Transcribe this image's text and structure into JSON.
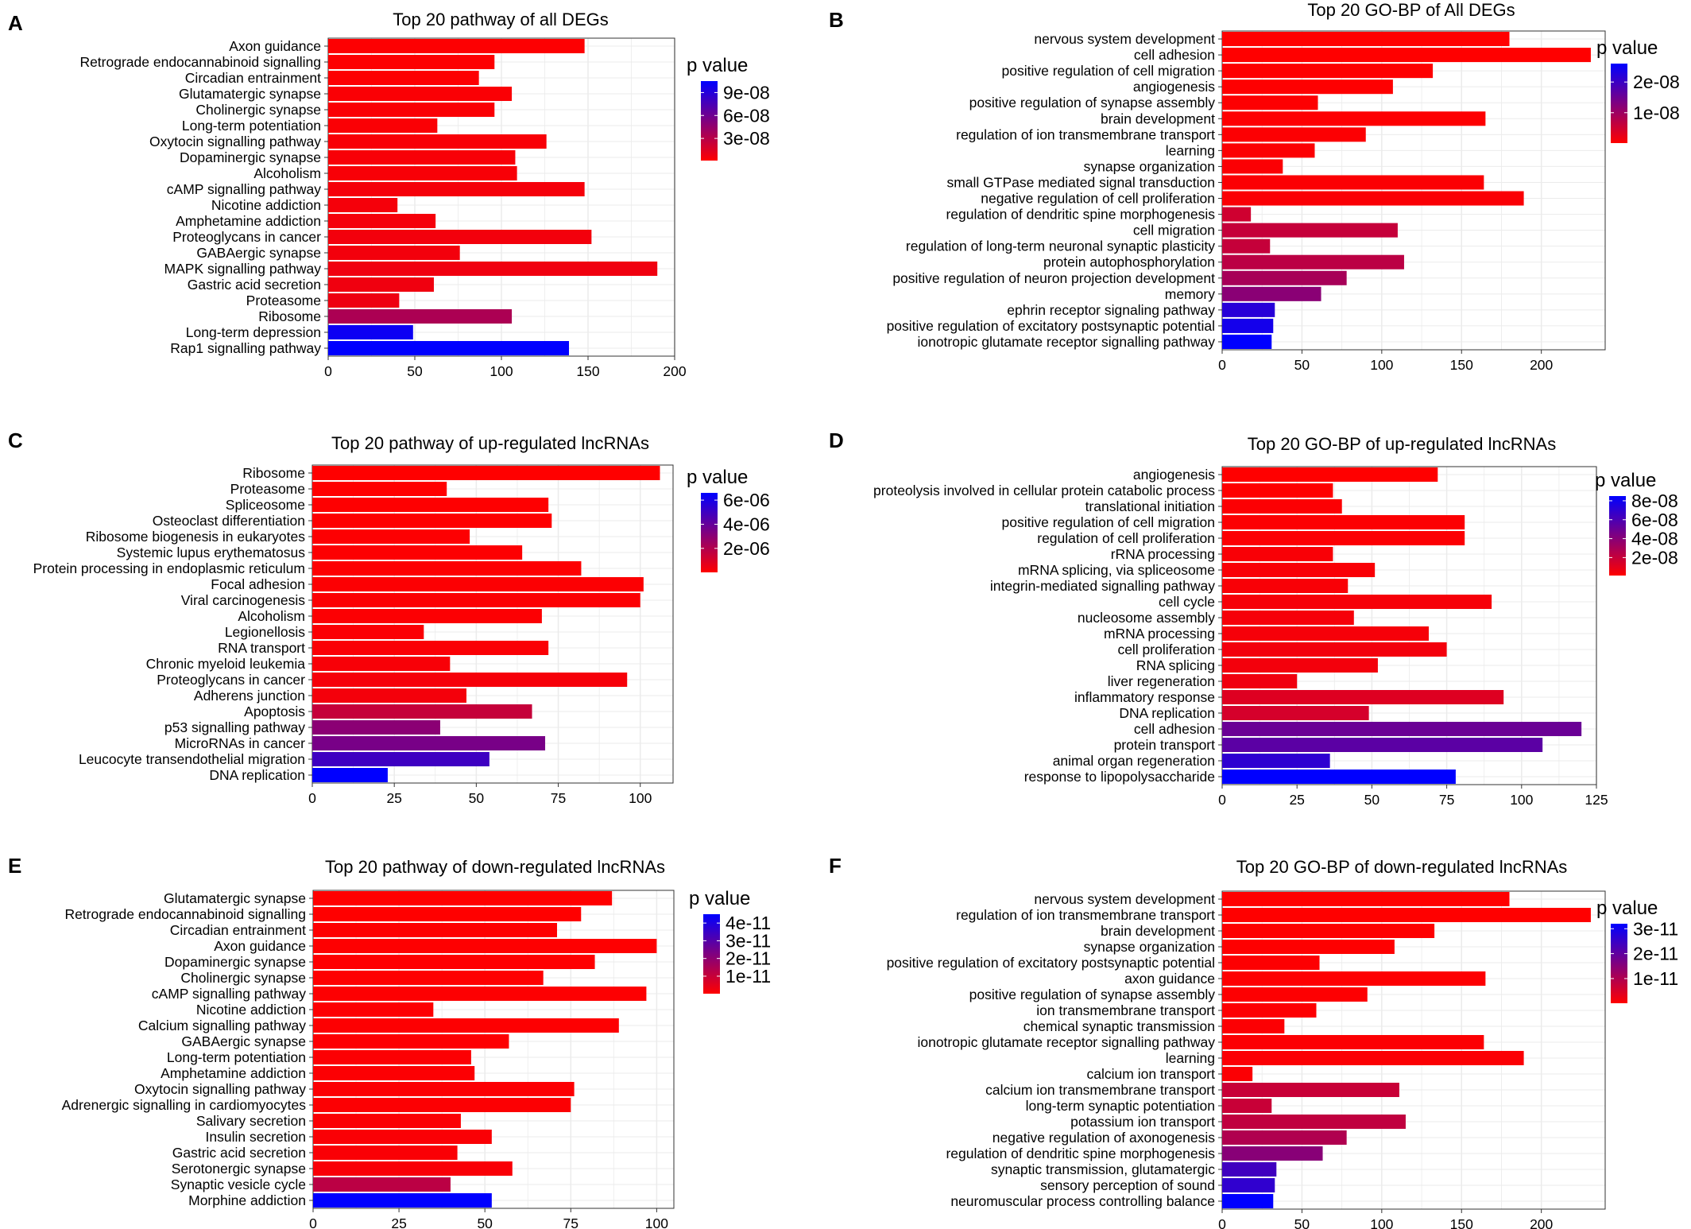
{
  "chart_data": [
    {
      "panel": "A",
      "type": "bar",
      "orientation": "horizontal",
      "title": "Top 20 pathway of all DEGs",
      "xlabel": "",
      "ylabel": "",
      "xlim": [
        0,
        200
      ],
      "xticks": [
        0,
        50,
        100,
        150,
        200
      ],
      "grid": true,
      "legend": {
        "title": "p value",
        "position": "right",
        "ticks": [
          "9e-08",
          "6e-08",
          "3e-08"
        ],
        "tick_values": [
          9e-08,
          6e-08,
          3e-08
        ],
        "range": [
          1e-09,
          1.05e-07
        ]
      },
      "categories": [
        "Axon guidance",
        "Retrograde endocannabinoid signalling",
        "Circadian entrainment",
        "Glutamatergic synapse",
        "Cholinergic synapse",
        "Long-term potentiation",
        "Oxytocin signalling pathway",
        "Dopaminergic synapse",
        "Alcoholism",
        "cAMP signalling pathway",
        "Nicotine addiction",
        "Amphetamine addiction",
        "Proteoglycans in cancer",
        "GABAergic synapse",
        "MAPK signalling pathway",
        "Gastric acid secretion",
        "Proteasome",
        "Ribosome",
        "Long-term depression",
        "Rap1 signalling pathway"
      ],
      "values": [
        148,
        96,
        87,
        106,
        96,
        63,
        126,
        108,
        109,
        148,
        40,
        62,
        152,
        76,
        190,
        61,
        41,
        106,
        49,
        139
      ],
      "p_values": [
        2e-09,
        2e-09,
        2e-09,
        3e-09,
        3e-09,
        3e-09,
        4e-09,
        4e-09,
        4e-09,
        5e-09,
        5e-09,
        5e-09,
        6e-09,
        6e-09,
        7e-09,
        7e-09,
        8e-09,
        3.5e-08,
        1e-07,
        1.05e-07
      ]
    },
    {
      "panel": "B",
      "type": "bar",
      "orientation": "horizontal",
      "title": "Top 20 GO-BP of All DEGs",
      "xlabel": "",
      "ylabel": "",
      "xlim": [
        0,
        240
      ],
      "xticks": [
        0,
        50,
        100,
        150,
        200
      ],
      "grid": true,
      "legend": {
        "title": "p value",
        "position": "right",
        "ticks": [
          "2e-08",
          "1e-08"
        ],
        "tick_values": [
          2e-08,
          1e-08
        ],
        "range": [
          1e-10,
          2.6e-08
        ]
      },
      "categories": [
        "nervous system development",
        "cell adhesion",
        "positive regulation of cell migration",
        "angiogenesis",
        "positive regulation of synapse assembly",
        "brain development",
        "regulation of ion transmembrane transport",
        "learning",
        "synapse organization",
        "small GTPase mediated signal transduction",
        "negative regulation of cell proliferation",
        "regulation of dendritic spine morphogenesis",
        "cell migration",
        "regulation of long-term neuronal synaptic plasticity",
        "protein autophosphorylation",
        "positive regulation of neuron projection development",
        "memory",
        "ephrin receptor signaling pathway",
        "positive regulation of excitatory postsynaptic potential",
        "ionotropic glutamate receptor signalling pathway"
      ],
      "values": [
        180,
        231,
        132,
        107,
        60,
        165,
        90,
        58,
        38,
        164,
        189,
        18,
        110,
        30,
        114,
        78,
        62,
        33,
        32,
        31
      ],
      "p_values": [
        1e-10,
        1e-10,
        2e-10,
        2e-10,
        3e-10,
        3e-10,
        4e-10,
        4e-10,
        5e-10,
        5e-10,
        6e-10,
        5e-09,
        6e-09,
        6e-09,
        7e-09,
        9e-09,
        1.2e-08,
        2.2e-08,
        2.4e-08,
        2.6e-08
      ]
    },
    {
      "panel": "C",
      "type": "bar",
      "orientation": "horizontal",
      "title": "Top 20 pathway  of up-regulated lncRNAs",
      "xlabel": "",
      "ylabel": "",
      "xlim": [
        0,
        110
      ],
      "xticks": [
        0,
        25,
        50,
        75,
        100
      ],
      "grid": true,
      "legend": {
        "title": "p value",
        "position": "right",
        "ticks": [
          "6e-06",
          "4e-06",
          "2e-06"
        ],
        "tick_values": [
          6e-06,
          4e-06,
          2e-06
        ],
        "range": [
          1e-08,
          6.6e-06
        ]
      },
      "categories": [
        "Ribosome",
        "Proteasome",
        "Spliceosome",
        "Osteoclast differentiation",
        "Ribosome biogenesis in eukaryotes",
        "Systemic lupus erythematosus",
        "Protein processing in endoplasmic reticulum",
        "Focal adhesion",
        "Viral carcinogenesis",
        "Alcoholism",
        "Legionellosis",
        "RNA transport",
        "Chronic myeloid leukemia",
        "Proteoglycans in cancer",
        "Adherens junction",
        "Apoptosis",
        "p53 signalling pathway",
        "MicroRNAs in cancer",
        "Leucocyte transendothelial migration",
        "DNA replication"
      ],
      "values": [
        106,
        41,
        72,
        73,
        48,
        64,
        82,
        101,
        100,
        70,
        34,
        72,
        42,
        96,
        47,
        67,
        39,
        71,
        54,
        23
      ],
      "p_values": [
        1e-08,
        2e-08,
        3e-08,
        4e-08,
        5e-08,
        6e-08,
        7e-08,
        8e-08,
        9e-08,
        1e-07,
        1.2e-07,
        1.5e-07,
        2e-07,
        2.5e-07,
        3e-07,
        1.5e-06,
        3e-06,
        3.5e-06,
        5e-06,
        6.6e-06
      ]
    },
    {
      "panel": "D",
      "type": "bar",
      "orientation": "horizontal",
      "title": "Top 20 GO-BP of up-regulated lncRNAs",
      "xlabel": "",
      "ylabel": "",
      "xlim": [
        0,
        125
      ],
      "xticks": [
        0,
        25,
        50,
        75,
        100,
        125
      ],
      "grid": true,
      "legend": {
        "title": "p value",
        "position": "right",
        "ticks": [
          "8e-08",
          "6e-08",
          "4e-08",
          "2e-08"
        ],
        "tick_values": [
          8e-08,
          6e-08,
          4e-08,
          2e-08
        ],
        "range": [
          1e-09,
          8.5e-08
        ]
      },
      "categories": [
        "angiogenesis",
        "proteolysis involved in cellular protein catabolic process",
        "translational initiation",
        "positive regulation of cell migration",
        "regulation of cell proliferation",
        "rRNA processing",
        "mRNA splicing, via spliceosome",
        "integrin-mediated signalling pathway",
        "cell cycle",
        "nucleosome assembly",
        "mRNA processing",
        "cell proliferation",
        "RNA splicing",
        "liver regeneration",
        "inflammatory response",
        "DNA replication",
        "cell adhesion",
        "protein transport",
        "animal organ regeneration",
        "response to lipopolysaccharide"
      ],
      "values": [
        72,
        37,
        40,
        81,
        81,
        37,
        51,
        42,
        90,
        44,
        69,
        75,
        52,
        25,
        94,
        49,
        120,
        107,
        36,
        78
      ],
      "p_values": [
        1e-09,
        1e-09,
        2e-09,
        2e-09,
        2e-09,
        3e-09,
        3e-09,
        3e-09,
        4e-09,
        4e-09,
        4e-09,
        5e-09,
        5e-09,
        6e-09,
        1.2e-08,
        1.5e-08,
        5e-08,
        5.5e-08,
        7e-08,
        8.5e-08
      ]
    },
    {
      "panel": "E",
      "type": "bar",
      "orientation": "horizontal",
      "title": "Top 20 pathway  of down-regulated lncRNAs",
      "xlabel": "",
      "ylabel": "",
      "xlim": [
        0,
        105
      ],
      "xticks": [
        0,
        25,
        50,
        75,
        100
      ],
      "grid": true,
      "legend": {
        "title": "p value",
        "position": "right",
        "ticks": [
          "4e-11",
          "3e-11",
          "2e-11",
          "1e-11"
        ],
        "tick_values": [
          4e-11,
          3e-11,
          2e-11,
          1e-11
        ],
        "range": [
          1e-13,
          4.5e-11
        ]
      },
      "categories": [
        "Glutamatergic synapse",
        "Retrograde endocannabinoid signalling",
        "Circadian entrainment",
        "Axon guidance",
        "Dopaminergic synapse",
        "Cholinergic synapse",
        "cAMP signalling pathway",
        "Nicotine addiction",
        "Calcium signalling pathway",
        "GABAergic synapse",
        "Long-term potentiation",
        "Amphetamine addiction",
        "Oxytocin signalling pathway",
        "Adrenergic signalling in cardiomyocytes",
        "Salivary secretion",
        "Insulin secretion",
        "Gastric acid secretion",
        "Serotonergic synapse",
        "Synaptic vesicle cycle",
        "Morphine addiction"
      ],
      "values": [
        87,
        78,
        71,
        100,
        82,
        67,
        97,
        35,
        89,
        57,
        46,
        47,
        76,
        75,
        43,
        52,
        42,
        58,
        40,
        52
      ],
      "p_values": [
        1e-13,
        1e-13,
        2e-13,
        2e-13,
        3e-13,
        3e-13,
        4e-13,
        4e-13,
        5e-13,
        5e-13,
        6e-13,
        6e-13,
        7e-13,
        7e-13,
        8e-13,
        9e-13,
        1e-12,
        1.2e-12,
        1.2e-11,
        4.5e-11
      ]
    },
    {
      "panel": "F",
      "type": "bar",
      "orientation": "horizontal",
      "title": "Top 20 GO-BP of down-regulated lncRNAs",
      "xlabel": "",
      "ylabel": "",
      "xlim": [
        0,
        240
      ],
      "xticks": [
        0,
        50,
        100,
        150,
        200
      ],
      "grid": true,
      "legend": {
        "title": "p value",
        "position": "right",
        "ticks": [
          "3e-11",
          "2e-11",
          "1e-11"
        ],
        "tick_values": [
          3e-11,
          2e-11,
          1e-11
        ],
        "range": [
          1e-13,
          3.2e-11
        ]
      },
      "categories": [
        "nervous system development",
        "regulation of ion transmembrane transport",
        "brain development",
        "synapse organization",
        "positive regulation of excitatory postsynaptic potential",
        "axon guidance",
        "positive regulation of synapse assembly",
        "ion transmembrane transport",
        "chemical synaptic transmission",
        "ionotropic glutamate receptor signalling pathway",
        "learning",
        "calcium ion transport",
        "calcium ion transmembrane transport",
        "long-term synaptic potentiation",
        "potassium ion transport",
        "negative regulation of axonogenesis",
        "regulation of dendritic spine morphogenesis",
        "synaptic transmission, glutamatergic",
        "sensory perception of sound",
        "neuromuscular process controlling balance"
      ],
      "values": [
        180,
        231,
        133,
        108,
        61,
        165,
        91,
        59,
        39,
        164,
        189,
        19,
        111,
        31,
        115,
        78,
        63,
        34,
        33,
        32
      ],
      "p_values": [
        1e-13,
        1e-13,
        2e-13,
        2e-13,
        3e-13,
        3e-13,
        4e-13,
        4e-13,
        5e-13,
        5e-13,
        6e-13,
        6e-13,
        7e-12,
        7e-12,
        8e-12,
        1e-11,
        1.5e-11,
        2.4e-11,
        2.6e-11,
        3.2e-11
      ]
    }
  ],
  "panel_labels": [
    "A",
    "B",
    "C",
    "D",
    "E",
    "F"
  ],
  "colors": {
    "low_p": "#ff0000",
    "high_p": "#0000ff",
    "grid": "#ebebeb",
    "frame": "#333333",
    "text": "#000000"
  }
}
